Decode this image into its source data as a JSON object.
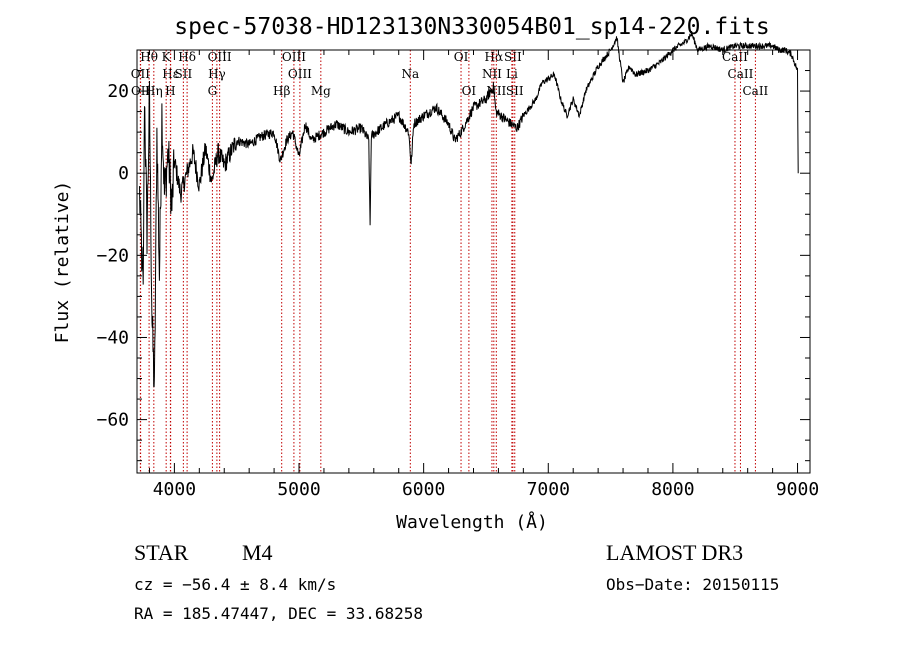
{
  "chart_data": {
    "type": "line",
    "title": "spec-57038-HD123130N330054B01_sp14-220.fits",
    "xlabel": "Wavelength (Å)",
    "ylabel": "Flux (relative)",
    "xlim": [
      3700,
      9100
    ],
    "ylim": [
      -73,
      30
    ],
    "x_ticks": [
      4000,
      5000,
      6000,
      7000,
      8000,
      9000
    ],
    "y_ticks": [
      20,
      0,
      -20,
      -40,
      -60
    ],
    "grid": false,
    "series": [
      {
        "name": "flux",
        "color": "#000000",
        "anchors": [
          [
            3720,
            -5
          ],
          [
            3750,
            -30
          ],
          [
            3760,
            20
          ],
          [
            3780,
            -15
          ],
          [
            3800,
            18
          ],
          [
            3820,
            -35
          ],
          [
            3840,
            -54
          ],
          [
            3860,
            10
          ],
          [
            3880,
            -25
          ],
          [
            3900,
            15
          ],
          [
            3920,
            -5
          ],
          [
            3950,
            5
          ],
          [
            3980,
            -8
          ],
          [
            4000,
            3
          ],
          [
            4050,
            -5
          ],
          [
            4100,
            0
          ],
          [
            4150,
            5
          ],
          [
            4200,
            -3
          ],
          [
            4250,
            6
          ],
          [
            4300,
            -2
          ],
          [
            4350,
            5
          ],
          [
            4400,
            2
          ],
          [
            4500,
            8
          ],
          [
            4600,
            7
          ],
          [
            4700,
            9
          ],
          [
            4800,
            10
          ],
          [
            4850,
            3
          ],
          [
            4900,
            8
          ],
          [
            4950,
            10
          ],
          [
            5000,
            4
          ],
          [
            5050,
            12
          ],
          [
            5100,
            8
          ],
          [
            5200,
            10
          ],
          [
            5300,
            12
          ],
          [
            5400,
            10
          ],
          [
            5500,
            11
          ],
          [
            5560,
            8
          ],
          [
            5570,
            -13
          ],
          [
            5580,
            9
          ],
          [
            5700,
            12
          ],
          [
            5800,
            14
          ],
          [
            5880,
            10
          ],
          [
            5900,
            2
          ],
          [
            5920,
            12
          ],
          [
            6000,
            14
          ],
          [
            6100,
            16
          ],
          [
            6200,
            12
          ],
          [
            6250,
            8
          ],
          [
            6300,
            10
          ],
          [
            6400,
            16
          ],
          [
            6500,
            18
          ],
          [
            6560,
            21
          ],
          [
            6580,
            15
          ],
          [
            6620,
            14
          ],
          [
            6700,
            12
          ],
          [
            6750,
            11
          ],
          [
            6800,
            14
          ],
          [
            6900,
            18
          ],
          [
            6950,
            22
          ],
          [
            7050,
            24
          ],
          [
            7100,
            18
          ],
          [
            7150,
            14
          ],
          [
            7200,
            18
          ],
          [
            7250,
            14
          ],
          [
            7300,
            20
          ],
          [
            7400,
            26
          ],
          [
            7500,
            30
          ],
          [
            7550,
            33
          ],
          [
            7600,
            22
          ],
          [
            7650,
            26
          ],
          [
            7700,
            24
          ],
          [
            7800,
            25
          ],
          [
            7900,
            27
          ],
          [
            8000,
            30
          ],
          [
            8100,
            32
          ],
          [
            8150,
            34
          ],
          [
            8200,
            30
          ],
          [
            8300,
            31
          ],
          [
            8400,
            30
          ],
          [
            8500,
            31
          ],
          [
            8600,
            31
          ],
          [
            8700,
            31
          ],
          [
            8800,
            31
          ],
          [
            8850,
            30
          ],
          [
            8900,
            30
          ],
          [
            8950,
            29
          ],
          [
            9000,
            25
          ],
          [
            9005,
            0
          ]
        ]
      }
    ],
    "line_markers": [
      {
        "label": "Hθ",
        "x": 3797,
        "row": 1
      },
      {
        "label": "OII",
        "x": 3727,
        "row": 2
      },
      {
        "label": "OII",
        "x": 3729,
        "row": 3
      },
      {
        "label": "K",
        "x": 3934,
        "row": 1
      },
      {
        "label": "Hε",
        "x": 3970,
        "row": 2
      },
      {
        "label": "Hη",
        "x": 3835,
        "row": 3
      },
      {
        "label": "H",
        "x": 3968,
        "row": 3
      },
      {
        "label": "Hδ",
        "x": 4102,
        "row": 1
      },
      {
        "label": "SII",
        "x": 4072,
        "row": 2
      },
      {
        "label": "OIII",
        "x": 4363,
        "row": 1
      },
      {
        "label": "Hγ",
        "x": 4341,
        "row": 2
      },
      {
        "label": "G",
        "x": 4305,
        "row": 3
      },
      {
        "label": "OIII",
        "x": 4959,
        "row": 1
      },
      {
        "label": "OIII",
        "x": 5007,
        "row": 2
      },
      {
        "label": "Hβ",
        "x": 4861,
        "row": 3
      },
      {
        "label": "Mg",
        "x": 5175,
        "row": 3
      },
      {
        "label": "Na",
        "x": 5893,
        "row": 2
      },
      {
        "label": "OI",
        "x": 6300,
        "row": 1
      },
      {
        "label": "OI",
        "x": 6363,
        "row": 3
      },
      {
        "label": "Hα",
        "x": 6563,
        "row": 1
      },
      {
        "label": "SII",
        "x": 6716,
        "row": 1
      },
      {
        "label": "NII",
        "x": 6548,
        "row": 2
      },
      {
        "label": "Li",
        "x": 6708,
        "row": 2
      },
      {
        "label": "NII",
        "x": 6583,
        "row": 3
      },
      {
        "label": "SII",
        "x": 6731,
        "row": 3
      },
      {
        "label": "CaII",
        "x": 8498,
        "row": 1
      },
      {
        "label": "CaII",
        "x": 8542,
        "row": 2
      },
      {
        "label": "CaII",
        "x": 8662,
        "row": 3
      }
    ]
  },
  "info": {
    "object_class": "STAR",
    "subclass": "M4",
    "survey": "LAMOST DR3",
    "cz": "cz = −56.4 ± 8.4 km/s",
    "obs_date": "Obs−Date: 20150115",
    "coords": "RA = 185.47447, DEC =  33.68258"
  },
  "colors": {
    "marker_line": "#c00000",
    "spectrum": "#000000",
    "axes": "#000000"
  }
}
